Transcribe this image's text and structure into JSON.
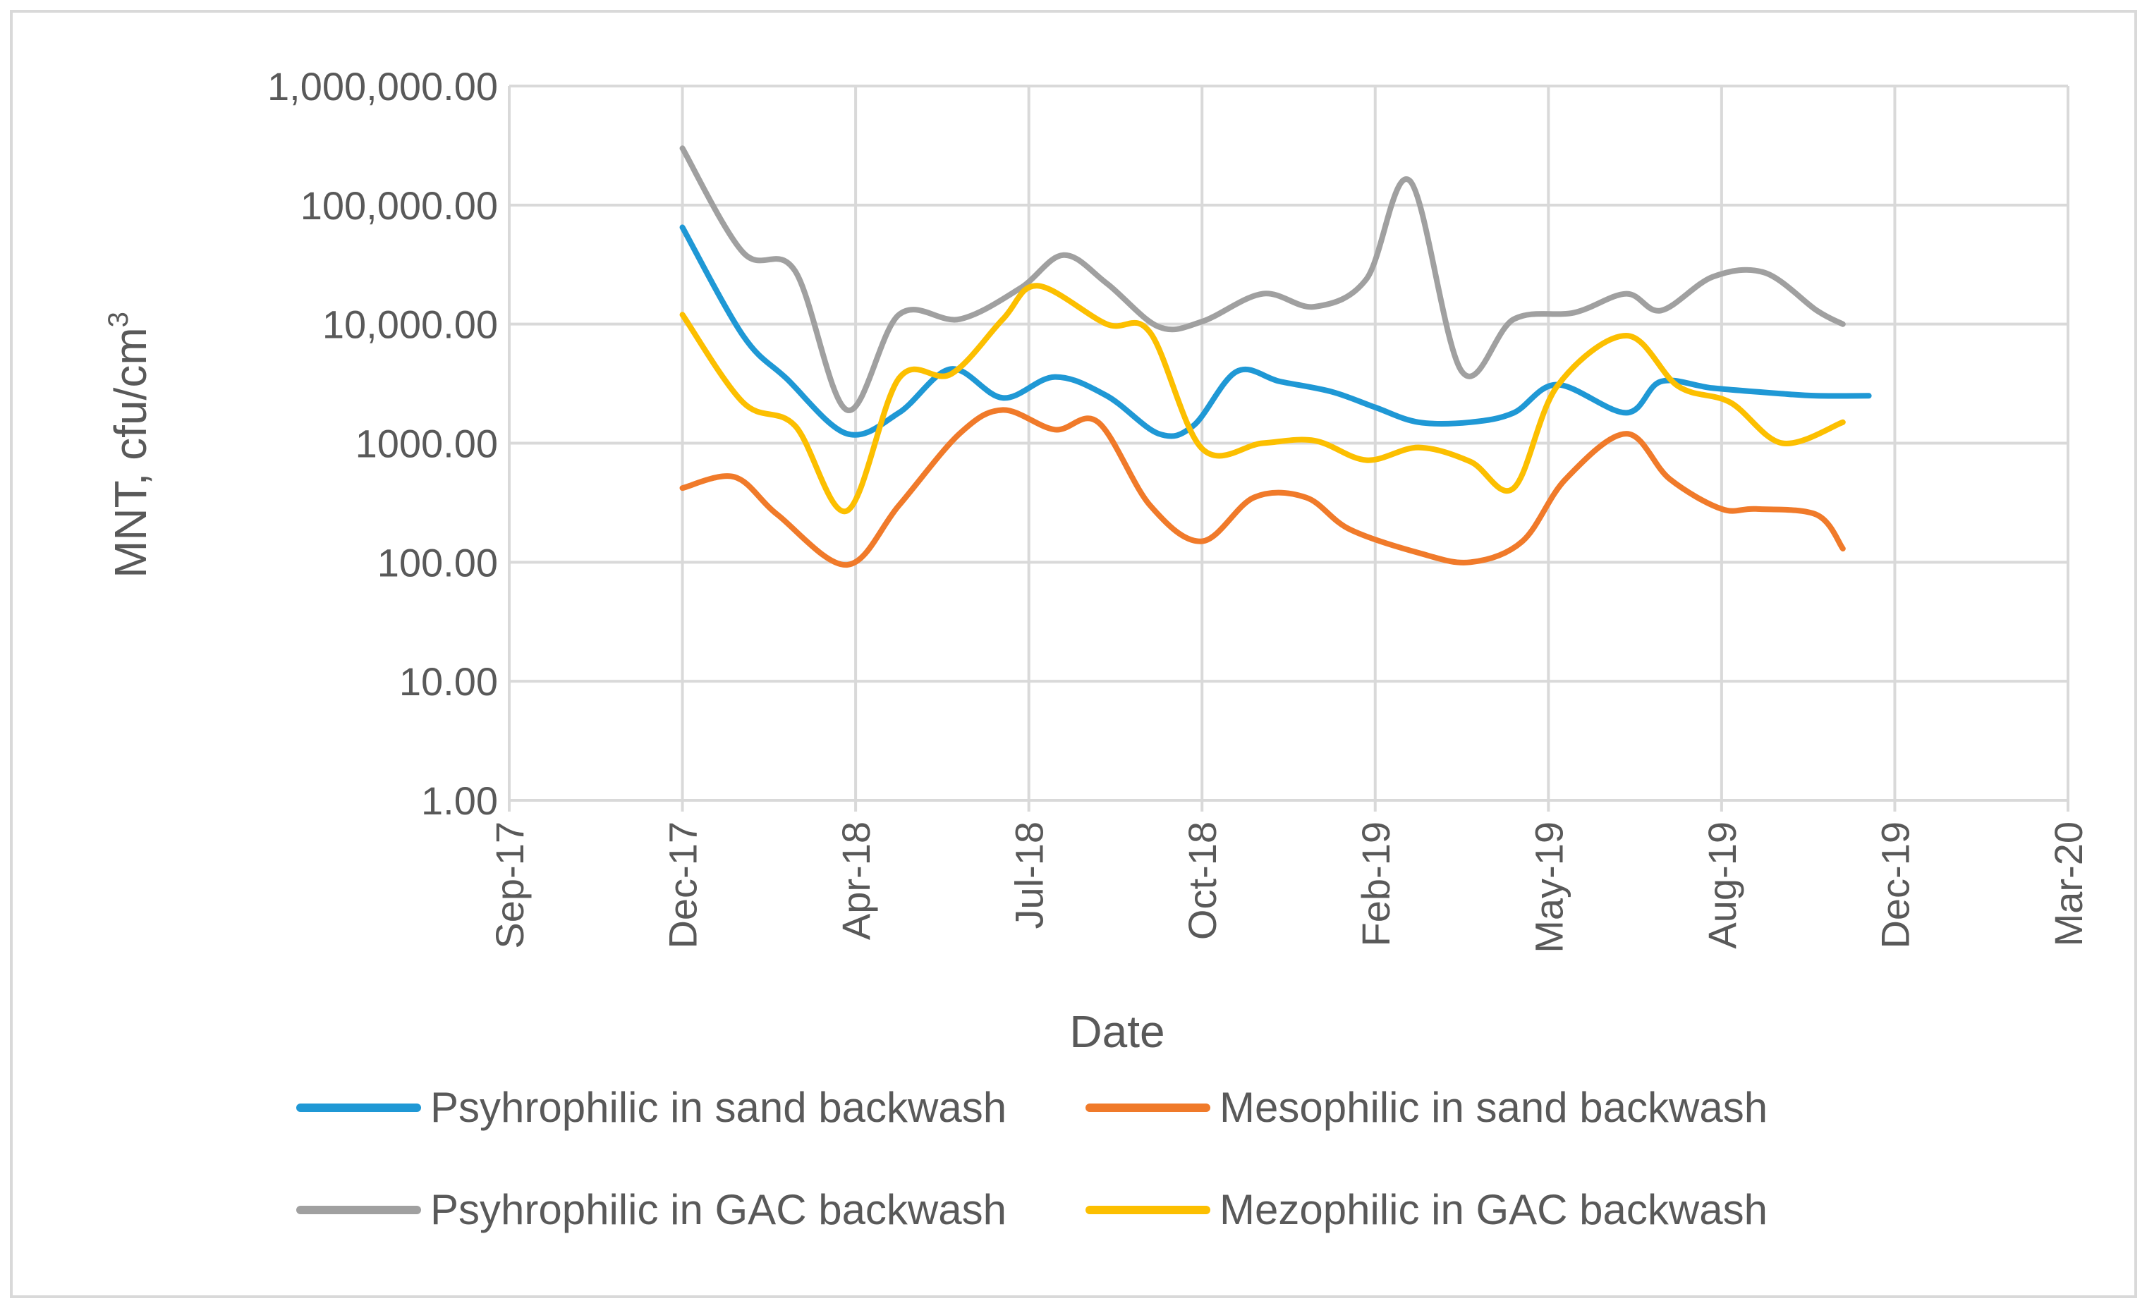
{
  "chart_data": {
    "type": "line",
    "title": "",
    "xlabel": "Date",
    "ylabel": "MNT, cfu/cm",
    "ylabel_superscript": "3",
    "y_scale": "log",
    "ylim": [
      1,
      1000000
    ],
    "y_ticks": [
      {
        "value": 1,
        "label": "1.00"
      },
      {
        "value": 10,
        "label": "10.00"
      },
      {
        "value": 100,
        "label": "100.00"
      },
      {
        "value": 1000,
        "label": "1000.00"
      },
      {
        "value": 10000,
        "label": "10,000.00"
      },
      {
        "value": 100000,
        "label": "100,000.00"
      },
      {
        "value": 1000000,
        "label": "1,000,000.00"
      }
    ],
    "x_ticks": [
      "Sep-17",
      "Dec-17",
      "Apr-18",
      "Jul-18",
      "Oct-18",
      "Feb-19",
      "May-19",
      "Aug-19",
      "Dec-19",
      "Mar-20"
    ],
    "legend_position": "bottom",
    "grid": true,
    "series": [
      {
        "name": "Psyhrophilic in sand backwash",
        "color": "#1f98d5",
        "x": [
          1,
          1.35,
          1.6,
          1.95,
          2.25,
          2.55,
          2.85,
          3.15,
          3.45,
          3.75,
          3.95,
          4.2,
          4.45,
          4.75,
          5,
          5.25,
          5.55,
          5.8,
          6.05,
          6.45,
          6.65,
          6.95,
          7.35,
          7.55,
          7.85
        ],
        "values": [
          65000,
          8000,
          3500,
          1200,
          1800,
          4200,
          2400,
          3600,
          2500,
          1200,
          1400,
          4000,
          3300,
          2700,
          2000,
          1500,
          1500,
          1800,
          3100,
          1800,
          3300,
          2900,
          2600,
          2500,
          2500
        ]
      },
      {
        "name": "Mesophilic in sand backwash",
        "color": "#f07a2a",
        "x": [
          1,
          1.3,
          1.55,
          1.95,
          2.25,
          2.6,
          2.85,
          3.15,
          3.4,
          3.7,
          4,
          4.3,
          4.6,
          4.85,
          5.25,
          5.55,
          5.85,
          6.1,
          6.45,
          6.7,
          7,
          7.2,
          7.55,
          7.7
        ],
        "values": [
          420,
          520,
          250,
          95,
          300,
          1200,
          1900,
          1300,
          1500,
          300,
          150,
          350,
          350,
          190,
          120,
          100,
          150,
          500,
          1200,
          500,
          280,
          280,
          250,
          130
        ]
      },
      {
        "name": "Psyhrophilic in GAC backwash",
        "color": "#a0a0a0",
        "x": [
          1,
          1.35,
          1.65,
          1.95,
          2.25,
          2.6,
          2.95,
          3.2,
          3.45,
          3.75,
          4,
          4.35,
          4.65,
          4.95,
          5.2,
          5.5,
          5.8,
          6.15,
          6.45,
          6.65,
          6.95,
          7.25,
          7.55,
          7.7
        ],
        "values": [
          300000,
          40000,
          28000,
          1900,
          12000,
          11000,
          20000,
          38000,
          22000,
          9500,
          10500,
          18000,
          14000,
          24000,
          160000,
          4000,
          11000,
          12500,
          18000,
          13000,
          25000,
          27000,
          13000,
          10000
        ]
      },
      {
        "name": "Mezophilic in GAC backwash",
        "color": "#fcbf00",
        "x": [
          1,
          1.35,
          1.65,
          1.95,
          2.25,
          2.55,
          2.85,
          3.05,
          3.45,
          3.7,
          4,
          4.35,
          4.65,
          4.95,
          5.25,
          5.55,
          5.8,
          6.05,
          6.45,
          6.75,
          7.05,
          7.35,
          7.7
        ],
        "values": [
          12000,
          2200,
          1400,
          270,
          3500,
          3800,
          11000,
          21000,
          10000,
          8500,
          900,
          1000,
          1050,
          720,
          920,
          700,
          420,
          3000,
          8000,
          3000,
          2200,
          1000,
          1500
        ]
      }
    ]
  }
}
